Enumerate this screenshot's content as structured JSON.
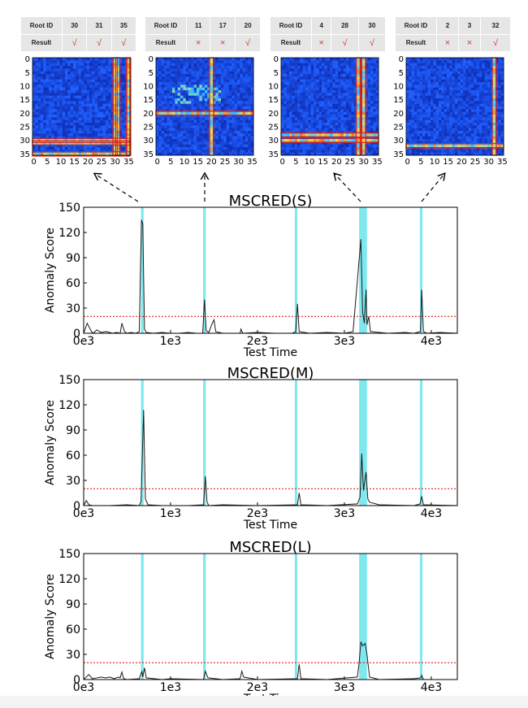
{
  "tables": [
    {
      "root_label": "Root ID",
      "result_label": "Result",
      "ids": [
        "30",
        "31",
        "35"
      ],
      "results": [
        "√",
        "√",
        "√"
      ]
    },
    {
      "root_label": "Root ID",
      "result_label": "Result",
      "ids": [
        "11",
        "17",
        "20"
      ],
      "results": [
        "×",
        "×",
        "√"
      ]
    },
    {
      "root_label": "Root ID",
      "result_label": "Result",
      "ids": [
        "4",
        "28",
        "30"
      ],
      "results": [
        "×",
        "√",
        "√"
      ]
    },
    {
      "root_label": "Root ID",
      "result_label": "Result",
      "ids": [
        "2",
        "3",
        "32"
      ],
      "results": [
        "×",
        "×",
        "√"
      ]
    }
  ],
  "colors": {
    "heat_low": "#0a1f9e",
    "heat_mid": "#1f5fff",
    "highlight": "#ffd23a",
    "red_box": "#e02020",
    "band": "#7fe8ee",
    "threshold": "#e02020",
    "line": "#1a1a1a"
  },
  "chart_data": [
    {
      "type": "heatmap",
      "title": "",
      "x_ticks": [
        "0",
        "5",
        "10",
        "15",
        "20",
        "25",
        "30",
        "35"
      ],
      "y_ticks": [
        "0",
        "5",
        "10",
        "15",
        "20",
        "25",
        "30",
        "35"
      ],
      "n": 36,
      "root_ids": [
        30,
        31,
        35
      ]
    },
    {
      "type": "heatmap",
      "title": "",
      "x_ticks": [
        "0",
        "5",
        "10",
        "15",
        "20",
        "25",
        "30",
        "35"
      ],
      "y_ticks": [
        "0",
        "5",
        "10",
        "15",
        "20",
        "25",
        "30",
        "35"
      ],
      "n": 36,
      "root_ids": [
        20
      ],
      "misses": [
        11,
        17
      ]
    },
    {
      "type": "heatmap",
      "title": "",
      "x_ticks": [
        "0",
        "5",
        "10",
        "15",
        "20",
        "25",
        "30",
        "35"
      ],
      "y_ticks": [
        "0",
        "5",
        "10",
        "15",
        "20",
        "25",
        "30",
        "35"
      ],
      "n": 36,
      "root_ids": [
        28,
        30
      ],
      "misses": [
        4
      ]
    },
    {
      "type": "heatmap",
      "title": "",
      "x_ticks": [
        "0",
        "5",
        "10",
        "15",
        "20",
        "25",
        "30",
        "35"
      ],
      "y_ticks": [
        "0",
        "5",
        "10",
        "15",
        "20",
        "25",
        "30",
        "35"
      ],
      "n": 36,
      "root_ids": [
        32
      ],
      "misses": [
        2,
        3
      ]
    },
    {
      "type": "line",
      "title": "MSCRED(S)",
      "xlabel": "Test Time",
      "ylabel": "Anomaly Score",
      "xlim": [
        0,
        4300
      ],
      "ylim": [
        0,
        150
      ],
      "x_ticks": [
        "0e3",
        "1e3",
        "2e3",
        "3e3",
        "4e3"
      ],
      "y_ticks": [
        "0",
        "30",
        "60",
        "90",
        "120",
        "150"
      ],
      "threshold": 20,
      "anomaly_bands": [
        [
          660,
          690
        ],
        [
          1375,
          1405
        ],
        [
          2430,
          2450
        ],
        [
          3170,
          3260
        ],
        [
          3870,
          3890
        ]
      ],
      "series": [
        {
          "name": "score",
          "x": [
            0,
            40,
            90,
            110,
            150,
            200,
            260,
            300,
            330,
            380,
            420,
            440,
            470,
            500,
            540,
            600,
            640,
            665,
            680,
            700,
            720,
            800,
            900,
            1000,
            1100,
            1200,
            1300,
            1370,
            1390,
            1410,
            1440,
            1480,
            1500,
            1520,
            1600,
            1800,
            1810,
            1830,
            2000,
            2200,
            2400,
            2440,
            2460,
            2480,
            2600,
            2800,
            3000,
            3100,
            3190,
            3210,
            3230,
            3250,
            3260,
            3280,
            3300,
            3500,
            3700,
            3800,
            3875,
            3890,
            3910,
            3950,
            4100,
            4300
          ],
          "values": [
            0,
            12,
            2,
            0,
            4,
            1,
            2,
            1,
            0,
            1,
            0,
            12,
            2,
            0,
            1,
            0,
            2,
            135,
            130,
            5,
            1,
            0,
            1,
            0,
            0,
            1,
            0,
            0,
            40,
            3,
            1,
            12,
            16,
            2,
            0,
            0,
            5,
            0,
            1,
            0,
            0,
            2,
            35,
            2,
            0,
            1,
            0,
            2,
            112,
            25,
            12,
            52,
            10,
            20,
            2,
            0,
            1,
            0,
            2,
            52,
            2,
            0,
            1,
            0
          ]
        }
      ]
    },
    {
      "type": "line",
      "title": "MSCRED(M)",
      "xlabel": "Test Time",
      "ylabel": "Anomaly Score",
      "xlim": [
        0,
        4300
      ],
      "ylim": [
        0,
        150
      ],
      "x_ticks": [
        "0e3",
        "1e3",
        "2e3",
        "3e3",
        "4e3"
      ],
      "y_ticks": [
        "0",
        "30",
        "60",
        "90",
        "120",
        "150"
      ],
      "threshold": 20,
      "anomaly_bands": [
        [
          660,
          690
        ],
        [
          1375,
          1405
        ],
        [
          2430,
          2450
        ],
        [
          3170,
          3260
        ],
        [
          3870,
          3890
        ]
      ],
      "series": [
        {
          "name": "score",
          "x": [
            0,
            30,
            60,
            100,
            300,
            500,
            640,
            660,
            690,
            710,
            740,
            900,
            1200,
            1380,
            1400,
            1420,
            1440,
            1600,
            2000,
            2460,
            2480,
            2500,
            2800,
            3150,
            3180,
            3200,
            3220,
            3250,
            3270,
            3290,
            3400,
            3800,
            3870,
            3890,
            3910,
            4300
          ],
          "values": [
            0,
            6,
            1,
            0,
            0,
            1,
            0,
            5,
            114,
            8,
            1,
            0,
            0,
            1,
            35,
            4,
            0,
            1,
            0,
            1,
            15,
            1,
            0,
            2,
            10,
            62,
            18,
            40,
            8,
            4,
            1,
            0,
            2,
            11,
            1,
            0
          ]
        }
      ]
    },
    {
      "type": "line",
      "title": "MSCRED(L)",
      "xlabel": "Test Time",
      "ylabel": "Anomaly Score",
      "xlim": [
        0,
        4300
      ],
      "ylim": [
        0,
        150
      ],
      "x_ticks": [
        "0e3",
        "1e3",
        "2e3",
        "3e3",
        "4e3"
      ],
      "y_ticks": [
        "0",
        "30",
        "60",
        "90",
        "120",
        "150"
      ],
      "threshold": 20,
      "anomaly_bands": [
        [
          660,
          690
        ],
        [
          1375,
          1405
        ],
        [
          2430,
          2450
        ],
        [
          3170,
          3260
        ],
        [
          3870,
          3890
        ]
      ],
      "series": [
        {
          "name": "score",
          "x": [
            0,
            60,
            100,
            150,
            200,
            250,
            300,
            350,
            400,
            420,
            440,
            460,
            500,
            640,
            670,
            680,
            700,
            720,
            900,
            1000,
            1380,
            1400,
            1430,
            1600,
            1800,
            1820,
            1840,
            2000,
            2460,
            2480,
            2500,
            2800,
            3150,
            3170,
            3190,
            3210,
            3240,
            3260,
            3290,
            3400,
            3800,
            3880,
            3890,
            3910,
            4300
          ],
          "values": [
            0,
            6,
            1,
            2,
            3,
            2,
            3,
            1,
            3,
            2,
            9,
            1,
            0,
            1,
            10,
            3,
            14,
            2,
            0,
            1,
            0,
            10,
            2,
            0,
            1,
            10,
            3,
            0,
            1,
            18,
            1,
            0,
            3,
            20,
            45,
            40,
            43,
            30,
            3,
            0,
            1,
            2,
            5,
            0,
            0
          ]
        }
      ]
    }
  ]
}
